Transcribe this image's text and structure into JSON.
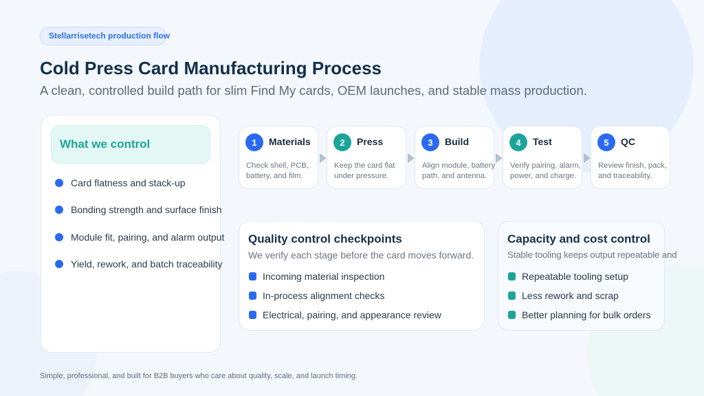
{
  "badge": "Stellarrisetech production flow",
  "title": "Cold Press Card Manufacturing Process",
  "subtitle": "A clean, controlled build path for slim Find My cards, OEM launches, and stable mass production.",
  "control": {
    "heading": "What we control",
    "items": [
      "Card flatness and stack-up",
      "Bonding strength and surface finish",
      "Module fit, pairing, and alarm output",
      "Yield, rework, and batch traceability"
    ]
  },
  "steps": [
    {
      "num": "1",
      "title": "Materials",
      "line1": "Check shell, PCB,",
      "line2": "battery, and film.",
      "color": "#2b6af0"
    },
    {
      "num": "2",
      "title": "Press",
      "line1": "Keep the card flat",
      "line2": "under pressure.",
      "color": "#1ca49a"
    },
    {
      "num": "3",
      "title": "Build",
      "line1": "Align module, battery",
      "line2": "path, and antenna.",
      "color": "#2b6af0"
    },
    {
      "num": "4",
      "title": "Test",
      "line1": "Verify pairing, alarm,",
      "line2": "power, and charge.",
      "color": "#1ca49a"
    },
    {
      "num": "5",
      "title": "QC",
      "line1": "Review finish, pack,",
      "line2": "and traceability.",
      "color": "#2b6af0"
    }
  ],
  "quality": {
    "title": "Quality control checkpoints",
    "subtitle": "We verify each stage before the card moves forward.",
    "items": [
      "Incoming material inspection",
      "In-process alignment checks",
      "Electrical, pairing, and appearance review"
    ]
  },
  "capacity": {
    "title": "Capacity and cost control",
    "subtitle": "Stable tooling keeps output repeatable and",
    "items": [
      "Repeatable tooling setup",
      "Less rework and scrap",
      "Better planning for bulk orders"
    ]
  },
  "footer": "Simple, professional, and built for B2B buyers who care about quality, scale, and launch timing.",
  "colors": {
    "blue": "#2b6af0",
    "teal": "#1ca49a"
  }
}
